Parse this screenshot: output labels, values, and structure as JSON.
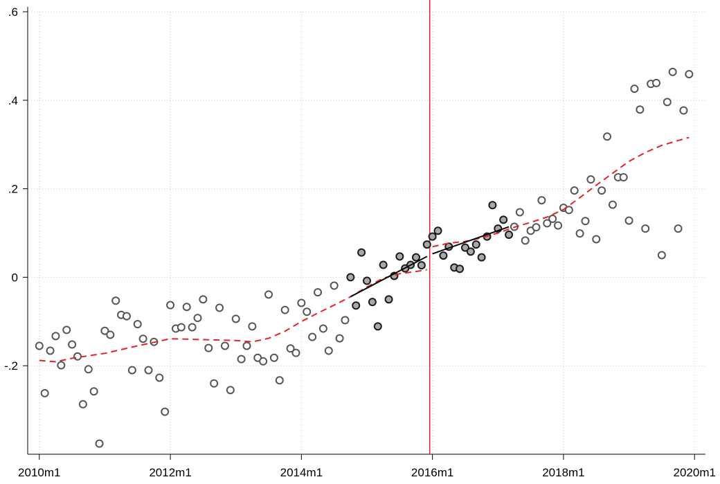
{
  "chart_data": {
    "type": "scatter",
    "xlim": [
      -2,
      122
    ],
    "ylim": [
      -0.4,
      0.6
    ],
    "xticks": [
      {
        "value": 0,
        "label": "2010m1"
      },
      {
        "value": 24,
        "label": "2012m1"
      },
      {
        "value": 48,
        "label": "2014m1"
      },
      {
        "value": 72,
        "label": "2016m1"
      },
      {
        "value": 96,
        "label": "2018m1"
      },
      {
        "value": 120,
        "label": "2020m1"
      }
    ],
    "yticks": [
      {
        "value": 0.6,
        "label": ".6"
      },
      {
        "value": 0.4,
        "label": ".4"
      },
      {
        "value": 0.2,
        "label": ".2"
      },
      0,
      {
        "value": -0.2,
        "label": "-.2"
      }
    ],
    "grid": true,
    "vline": {
      "value": 71.5,
      "color": "#e8202a"
    },
    "series": [
      {
        "kind": "points",
        "fill": "#ffffff",
        "color": "#555555",
        "x": [
          0,
          1,
          2,
          3,
          4,
          5,
          6,
          7,
          8,
          9,
          10,
          11,
          12,
          13,
          14,
          15,
          16,
          17,
          18,
          19,
          20,
          21,
          22,
          23,
          24,
          25,
          26,
          27,
          28,
          29,
          30,
          31,
          32,
          33,
          34,
          35,
          36,
          37,
          38,
          39,
          40,
          41,
          42,
          43,
          44,
          45,
          46,
          47,
          48,
          49,
          50,
          51,
          52,
          53,
          54,
          55,
          56,
          87,
          88,
          89,
          90,
          91,
          92,
          93,
          94,
          95,
          96,
          97,
          98,
          99,
          100,
          101,
          102,
          103,
          104,
          105,
          106,
          107,
          108,
          109,
          110,
          111,
          112,
          113,
          114,
          115,
          116,
          117,
          118,
          119
        ],
        "values": [
          -0.155,
          -0.262,
          -0.166,
          -0.133,
          -0.199,
          -0.119,
          -0.152,
          -0.179,
          -0.287,
          -0.208,
          -0.258,
          -0.376,
          -0.121,
          -0.13,
          -0.053,
          -0.085,
          -0.088,
          -0.21,
          -0.106,
          -0.139,
          -0.21,
          -0.146,
          -0.227,
          -0.304,
          -0.063,
          -0.116,
          -0.113,
          -0.067,
          -0.113,
          -0.092,
          -0.05,
          -0.16,
          -0.24,
          -0.069,
          -0.155,
          -0.255,
          -0.094,
          -0.185,
          -0.155,
          -0.111,
          -0.182,
          -0.19,
          -0.039,
          -0.182,
          -0.233,
          -0.074,
          -0.161,
          -0.171,
          -0.058,
          -0.078,
          -0.135,
          -0.034,
          -0.116,
          -0.166,
          -0.019,
          -0.138,
          -0.097,
          0.114,
          0.147,
          0.083,
          0.105,
          0.113,
          0.174,
          0.122,
          0.132,
          0.117,
          0.157,
          0.152,
          0.196,
          0.099,
          0.127,
          0.221,
          0.086,
          0.196,
          0.318,
          0.164,
          0.226,
          0.226,
          0.128,
          0.426,
          0.379,
          0.11,
          0.437,
          0.439,
          0.05,
          0.396,
          0.464,
          0.11,
          0.377,
          0.459
        ]
      },
      {
        "kind": "points",
        "fill": "#a8a8a8",
        "color": "#1a1a1a",
        "x": [
          57,
          58,
          59,
          60,
          61,
          62,
          63,
          64,
          65,
          66,
          67,
          68,
          69,
          70,
          71,
          72,
          73,
          74,
          75,
          76,
          77,
          78,
          79,
          80,
          81,
          82,
          83,
          84,
          85,
          86
        ],
        "values": [
          0.0,
          -0.064,
          0.056,
          -0.008,
          -0.056,
          -0.111,
          0.028,
          -0.05,
          0.003,
          0.047,
          0.02,
          0.028,
          0.045,
          0.027,
          0.074,
          0.092,
          0.105,
          0.049,
          0.069,
          0.022,
          0.019,
          0.067,
          0.058,
          0.074,
          0.045,
          0.092,
          0.163,
          0.11,
          0.13,
          0.096
        ]
      },
      {
        "kind": "line",
        "dashed": true,
        "color": "#e8202a",
        "x": [
          0,
          3,
          6,
          12,
          18,
          24,
          30,
          36,
          39,
          42,
          45,
          48,
          51,
          54,
          57,
          60,
          63,
          66,
          69,
          71,
          71.5,
          72,
          75,
          78,
          81,
          84,
          87,
          90,
          93,
          96,
          99,
          102,
          105,
          108,
          111,
          114,
          117,
          119
        ],
        "values": [
          -0.188,
          -0.191,
          -0.183,
          -0.172,
          -0.155,
          -0.139,
          -0.141,
          -0.143,
          -0.146,
          -0.138,
          -0.122,
          -0.1,
          -0.081,
          -0.063,
          -0.044,
          -0.022,
          -0.002,
          0.008,
          0.013,
          0.017,
          null,
          0.069,
          0.077,
          0.081,
          0.089,
          0.1,
          0.113,
          0.124,
          0.136,
          0.153,
          0.18,
          0.208,
          0.235,
          0.262,
          0.282,
          0.298,
          0.309,
          0.316
        ]
      },
      {
        "kind": "line",
        "dashed": false,
        "color": "#000000",
        "x": [
          57,
          71,
          71.5,
          72,
          86
        ],
        "values": [
          -0.044,
          0.047,
          null,
          0.053,
          0.114
        ]
      }
    ]
  }
}
